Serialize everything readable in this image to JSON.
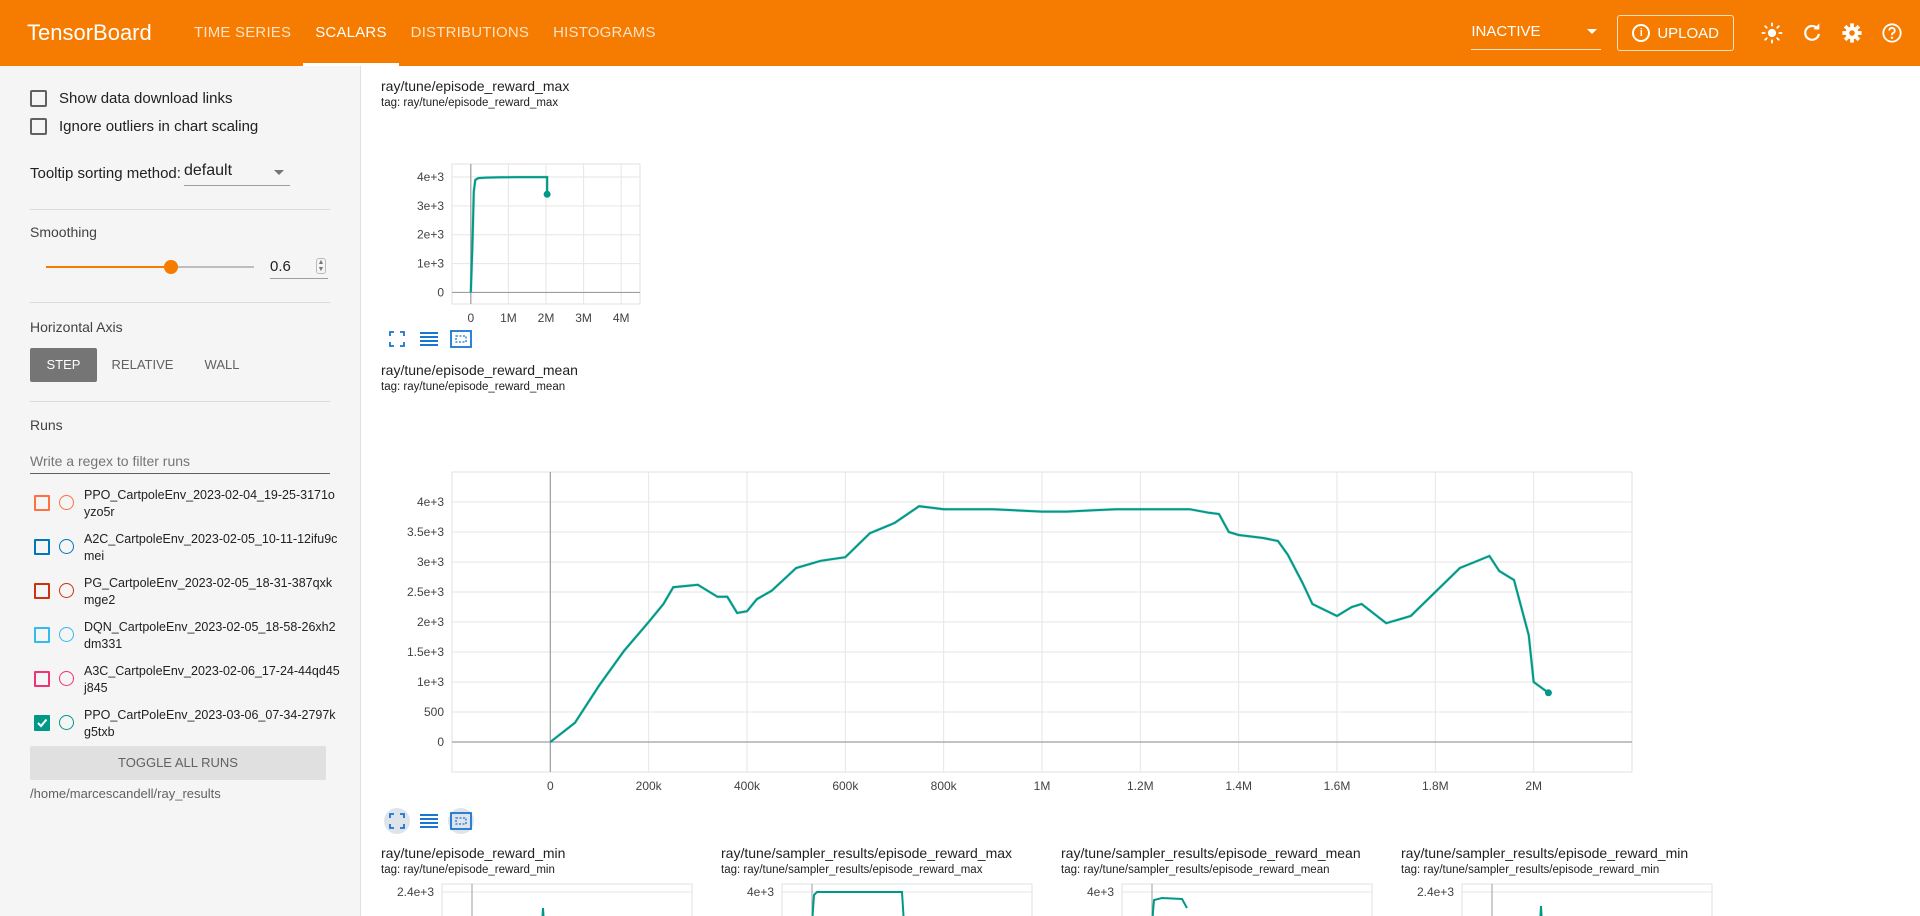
{
  "header": {
    "brand": "TensorBoard",
    "tabs": [
      "TIME SERIES",
      "SCALARS",
      "DISTRIBUTIONS",
      "HISTOGRAMS"
    ],
    "active_tab": "SCALARS",
    "status_select": "INACTIVE",
    "upload_label": "UPLOAD",
    "icons": [
      "brightness-icon",
      "refresh-icon",
      "settings-icon",
      "help-icon"
    ],
    "color": "#f57c00"
  },
  "sidebar": {
    "show_download_label": "Show data download links",
    "ignore_outliers_label": "Ignore outliers in chart scaling",
    "tooltip_label": "Tooltip sorting method:",
    "tooltip_value": "default",
    "smoothing_label": "Smoothing",
    "smoothing_value": "0.6",
    "axis_label": "Horizontal Axis",
    "axis_options": [
      "STEP",
      "RELATIVE",
      "WALL"
    ],
    "axis_selected": "STEP",
    "runs_label": "Runs",
    "runs_filter_placeholder": "Write a regex to filter runs",
    "runs": [
      {
        "name": "PPO_CartpoleEnv_2023-02-04_19-25-3171oyzo5r",
        "color": "#ff7043",
        "checked": false
      },
      {
        "name": "A2C_CartpoleEnv_2023-02-05_10-11-12ifu9cmei",
        "color": "#0077bb",
        "checked": false
      },
      {
        "name": "PG_CartpoleEnv_2023-02-05_18-31-387qxkmge2",
        "color": "#cc3311",
        "checked": false
      },
      {
        "name": "DQN_CartpoleEnv_2023-02-05_18-58-26xh2dm331",
        "color": "#33bbee",
        "checked": false
      },
      {
        "name": "A3C_CartpoleEnv_2023-02-06_17-24-44qd45j845",
        "color": "#ee3377",
        "checked": false
      },
      {
        "name": "PPO_CartPoleEnv_2023-03-06_07-34-2797kg5txb",
        "color": "#009988",
        "checked": true
      }
    ],
    "toggle_all_label": "TOGGLE ALL RUNS",
    "logdir": "/home/marcescandell/ray_results"
  },
  "cards": {
    "reward_max": {
      "title": "ray/tune/episode_reward_max",
      "tag": "tag: ray/tune/episode_reward_max"
    },
    "reward_mean": {
      "title": "ray/tune/episode_reward_mean",
      "tag": "tag: ray/tune/episode_reward_mean"
    },
    "reward_min": {
      "title": "ray/tune/episode_reward_min",
      "tag": "tag: ray/tune/episode_reward_min"
    },
    "sampler_max": {
      "title": "ray/tune/sampler_results/episode_reward_max",
      "tag": "tag: ray/tune/sampler_results/episode_reward_max"
    },
    "sampler_mean": {
      "title": "ray/tune/sampler_results/episode_reward_mean",
      "tag": "tag: ray/tune/sampler_results/episode_reward_mean"
    },
    "sampler_min": {
      "title": "ray/tune/sampler_results/episode_reward_min",
      "tag": "tag: ray/tune/sampler_results/episode_reward_min"
    }
  },
  "chart_data": [
    {
      "type": "line",
      "title": "ray/tune/episode_reward_max",
      "x_ticks": [
        0,
        1000000,
        2000000,
        3000000,
        4000000
      ],
      "x_tick_labels": [
        "0",
        "1M",
        "2M",
        "3M",
        "4M"
      ],
      "y_ticks": [
        0,
        1000,
        2000,
        3000,
        4000
      ],
      "y_tick_labels": [
        "0",
        "1e+3",
        "2e+3",
        "3e+3",
        "4e+3"
      ],
      "xlim": [
        -500000,
        4500000
      ],
      "ylim": [
        -400,
        4450
      ],
      "series": [
        {
          "color": "#009988",
          "x": [
            0,
            40000,
            80000,
            120000,
            200000,
            400000,
            800000,
            1200000,
            1600000,
            2030000,
            2030000
          ],
          "y": [
            0,
            1500,
            3500,
            3900,
            3960,
            3980,
            3990,
            3995,
            3995,
            3995,
            3400
          ]
        }
      ]
    },
    {
      "type": "line",
      "title": "ray/tune/episode_reward_mean",
      "x_ticks": [
        0,
        200000,
        400000,
        600000,
        800000,
        1000000,
        1200000,
        1400000,
        1600000,
        1800000,
        2000000
      ],
      "x_tick_labels": [
        "0",
        "200k",
        "400k",
        "600k",
        "800k",
        "1M",
        "1.2M",
        "1.4M",
        "1.6M",
        "1.8M",
        "2M"
      ],
      "y_ticks": [
        0,
        500,
        1000,
        1500,
        2000,
        2500,
        3000,
        3500,
        4000
      ],
      "y_tick_labels": [
        "0",
        "500",
        "1e+3",
        "1.5e+3",
        "2e+3",
        "2.5e+3",
        "3e+3",
        "3.5e+3",
        "4e+3"
      ],
      "xlim": [
        -200000,
        2200000
      ],
      "ylim": [
        -500,
        4500
      ],
      "series": [
        {
          "color": "#009988",
          "x": [
            0,
            50000,
            100000,
            150000,
            200000,
            230000,
            250000,
            300000,
            340000,
            360000,
            380000,
            400000,
            420000,
            450000,
            500000,
            550000,
            600000,
            650000,
            700000,
            750000,
            800000,
            850000,
            900000,
            1000000,
            1050000,
            1100000,
            1150000,
            1200000,
            1250000,
            1300000,
            1340000,
            1360000,
            1380000,
            1400000,
            1450000,
            1480000,
            1500000,
            1530000,
            1550000,
            1600000,
            1630000,
            1650000,
            1700000,
            1750000,
            1800000,
            1850000,
            1880000,
            1910000,
            1930000,
            1960000,
            1990000,
            2000000,
            2030000
          ],
          "y": [
            0,
            320,
            950,
            1520,
            2000,
            2300,
            2580,
            2620,
            2420,
            2420,
            2150,
            2180,
            2380,
            2520,
            2900,
            3020,
            3080,
            3480,
            3650,
            3930,
            3880,
            3880,
            3880,
            3840,
            3840,
            3860,
            3880,
            3880,
            3880,
            3880,
            3820,
            3800,
            3500,
            3450,
            3400,
            3350,
            3120,
            2650,
            2300,
            2100,
            2250,
            2300,
            1980,
            2100,
            2500,
            2900,
            3000,
            3100,
            2850,
            2700,
            1780,
            1000,
            820
          ]
        }
      ]
    },
    {
      "type": "line",
      "title": "ray/tune/episode_reward_min",
      "y_tick_labels": [
        "2.4e+3"
      ]
    },
    {
      "type": "line",
      "title": "ray/tune/sampler_results/episode_reward_max",
      "y_tick_labels": [
        "4e+3"
      ]
    },
    {
      "type": "line",
      "title": "ray/tune/sampler_results/episode_reward_mean",
      "y_tick_labels": [
        "4e+3"
      ]
    },
    {
      "type": "line",
      "title": "ray/tune/sampler_results/episode_reward_min",
      "y_tick_labels": [
        "2.4e+3"
      ]
    }
  ]
}
